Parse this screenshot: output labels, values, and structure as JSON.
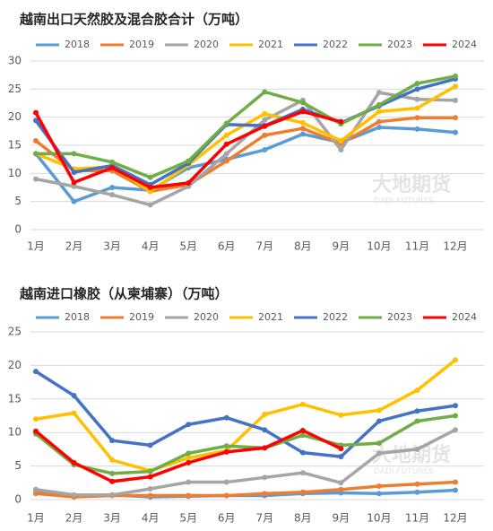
{
  "chart_data": [
    {
      "type": "line",
      "title": "越南出口天然胶及混合胶合计（万吨）",
      "watermark": "大地期货",
      "watermark_sub": "DADI FUTURES",
      "categories": [
        "1月",
        "2月",
        "3月",
        "4月",
        "5月",
        "6月",
        "7月",
        "8月",
        "9月",
        "10月",
        "11月",
        "12月"
      ],
      "ylim": [
        0,
        30
      ],
      "yticks": [
        0,
        5,
        10,
        15,
        20,
        25,
        30
      ],
      "grid": true,
      "series": [
        {
          "name": "2018",
          "color": "#5b9bd5",
          "values": [
            13.5,
            5,
            7.5,
            7,
            11,
            12.5,
            14.2,
            17,
            15.5,
            18.2,
            17.9,
            17.3
          ]
        },
        {
          "name": "2019",
          "color": "#ed7d31",
          "values": [
            15.8,
            10.5,
            10.5,
            6.8,
            8,
            12.2,
            16.8,
            18,
            15.3,
            19.2,
            19.9,
            19.9
          ]
        },
        {
          "name": "2020",
          "color": "#a5a5a5",
          "values": [
            9,
            7.7,
            6.2,
            4.4,
            7.7,
            13.5,
            19.5,
            23,
            14.2,
            24.4,
            23.2,
            23
          ]
        },
        {
          "name": "2021",
          "color": "#ffc000",
          "values": [
            13.5,
            10.8,
            11.2,
            6.8,
            11.5,
            16.8,
            20.6,
            19,
            15.8,
            21,
            21.6,
            25.5
          ]
        },
        {
          "name": "2022",
          "color": "#4472c4",
          "values": [
            19.4,
            10.2,
            11.4,
            8,
            11.8,
            18.7,
            18.5,
            21.4,
            19,
            22,
            25,
            26.8
          ]
        },
        {
          "name": "2023",
          "color": "#70ad47",
          "values": [
            13.5,
            13.5,
            12,
            9.3,
            12.2,
            18.9,
            24.5,
            22.6,
            18.8,
            22.2,
            26,
            27.3
          ]
        },
        {
          "name": "2024",
          "color": "#ff0000",
          "values": [
            20.8,
            8.4,
            11,
            7.5,
            8.3,
            15.2,
            18.4,
            21,
            19.2,
            null,
            null,
            null
          ]
        }
      ]
    },
    {
      "type": "line",
      "title": "越南进口橡胶（从柬埔寨）（万吨）",
      "watermark": "大地期货",
      "watermark_sub": "DADI FUTURES",
      "categories": [
        "1月",
        "2月",
        "3月",
        "4月",
        "5月",
        "6月",
        "7月",
        "8月",
        "9月",
        "10月",
        "11月",
        "12月"
      ],
      "ylim": [
        0,
        25
      ],
      "yticks": [
        0,
        5,
        10,
        15,
        20,
        25
      ],
      "grid": true,
      "series": [
        {
          "name": "2018",
          "color": "#5b9bd5",
          "values": [
            1.3,
            0.5,
            0.7,
            0.4,
            0.5,
            0.6,
            0.6,
            0.9,
            1.0,
            0.9,
            1.1,
            1.4
          ]
        },
        {
          "name": "2019",
          "color": "#ed7d31",
          "values": [
            0.9,
            0.4,
            0.6,
            0.6,
            0.6,
            0.6,
            0.9,
            1.1,
            1.5,
            2.0,
            2.3,
            2.6
          ]
        },
        {
          "name": "2020",
          "color": "#a5a5a5",
          "values": [
            1.5,
            0.7,
            0.7,
            1.6,
            2.6,
            2.6,
            3.3,
            4.0,
            2.5,
            6.9,
            7.5,
            10.4
          ]
        },
        {
          "name": "2021",
          "color": "#ffc000",
          "values": [
            12,
            12.9,
            5.9,
            4.3,
            6.2,
            7.3,
            12.7,
            14.2,
            12.6,
            13.3,
            16.3,
            20.8
          ]
        },
        {
          "name": "2022",
          "color": "#4472c4",
          "values": [
            19.1,
            15.5,
            8.8,
            8.1,
            11.2,
            12.2,
            10.4,
            7.0,
            6.4,
            11.7,
            13.2,
            14.0
          ]
        },
        {
          "name": "2023",
          "color": "#70ad47",
          "values": [
            9.8,
            5.2,
            3.9,
            4.2,
            6.9,
            8.0,
            7.7,
            9.6,
            8.1,
            8.4,
            11.7,
            12.5
          ]
        },
        {
          "name": "2024",
          "color": "#ff0000",
          "values": [
            10.2,
            5.5,
            2.7,
            3.4,
            5.5,
            7.1,
            7.7,
            10.3,
            7.6,
            null,
            null,
            null
          ]
        }
      ]
    }
  ]
}
